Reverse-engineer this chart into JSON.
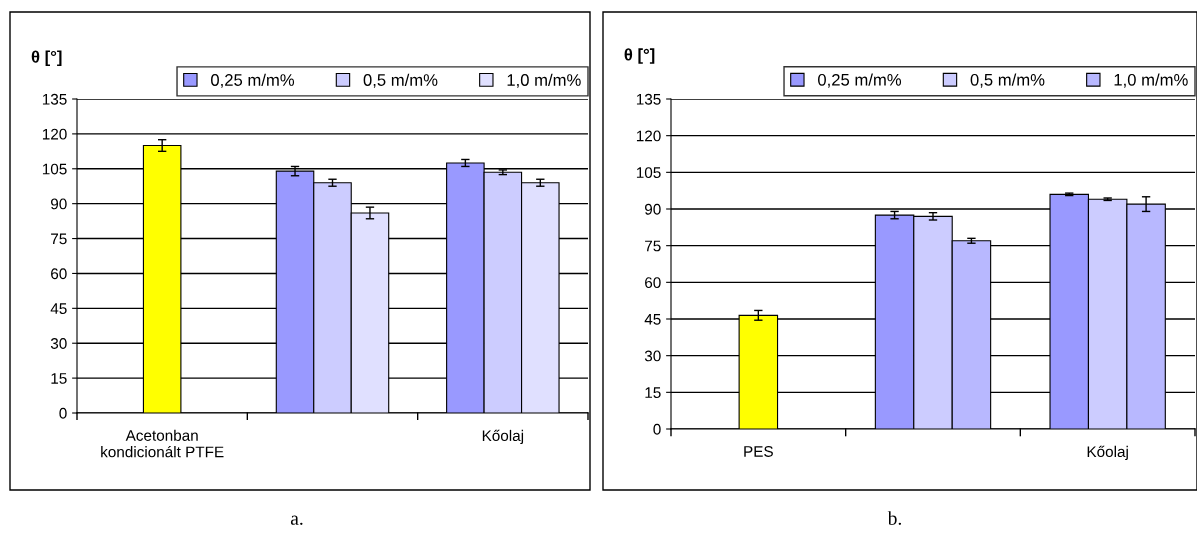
{
  "chart_data": [
    {
      "type": "bar",
      "ylabel": "θ [°]",
      "categories": [
        "Acetonban\nkondicionált PTFE",
        null,
        "Kőolaj"
      ],
      "ylim": [
        0,
        135
      ],
      "yticks": [
        0,
        15,
        30,
        45,
        60,
        75,
        90,
        105,
        120,
        135
      ],
      "grid": "y",
      "legend": "top right",
      "annotations": [
        "a."
      ],
      "series": [
        {
          "color": "#ffff00",
          "values": [
            115,
            null,
            null
          ],
          "errors": [
            2.5,
            null,
            null
          ]
        },
        {
          "name": "0,25 m/m%",
          "color": "#9999ff",
          "values": [
            null,
            104,
            107.5
          ],
          "errors": [
            null,
            2,
            1.5
          ]
        },
        {
          "name": "0,5 m/m%",
          "color": "#ccccff",
          "values": [
            null,
            99,
            103.5
          ],
          "errors": [
            null,
            1.5,
            1
          ]
        },
        {
          "name": "1,0 m/m%",
          "color": "#e0e0ff",
          "values": [
            null,
            86,
            99
          ],
          "errors": [
            null,
            2.5,
            1.5
          ]
        }
      ]
    },
    {
      "type": "bar",
      "ylabel": "θ [°]",
      "categories": [
        "PES",
        null,
        "Kőolaj"
      ],
      "ylim": [
        0,
        135
      ],
      "yticks": [
        0,
        15,
        30,
        45,
        60,
        75,
        90,
        105,
        120,
        135
      ],
      "grid": "y",
      "legend": "top right",
      "annotations": [
        "b."
      ],
      "series": [
        {
          "color": "#ffff00",
          "values": [
            46.5,
            null,
            null
          ],
          "errors": [
            2,
            null,
            null
          ]
        },
        {
          "name": "0,25 m/m%",
          "color": "#9999ff",
          "values": [
            null,
            87.5,
            96
          ],
          "errors": [
            null,
            1.5,
            0.5
          ]
        },
        {
          "name": "0,5 m/m%",
          "color": "#ccccff",
          "values": [
            null,
            87,
            94
          ],
          "errors": [
            null,
            1.5,
            0.5
          ]
        },
        {
          "name": "1,0 m/m%",
          "color": "#b8b8ff",
          "values": [
            null,
            77,
            92
          ],
          "errors": [
            null,
            1,
            3
          ]
        }
      ]
    }
  ]
}
